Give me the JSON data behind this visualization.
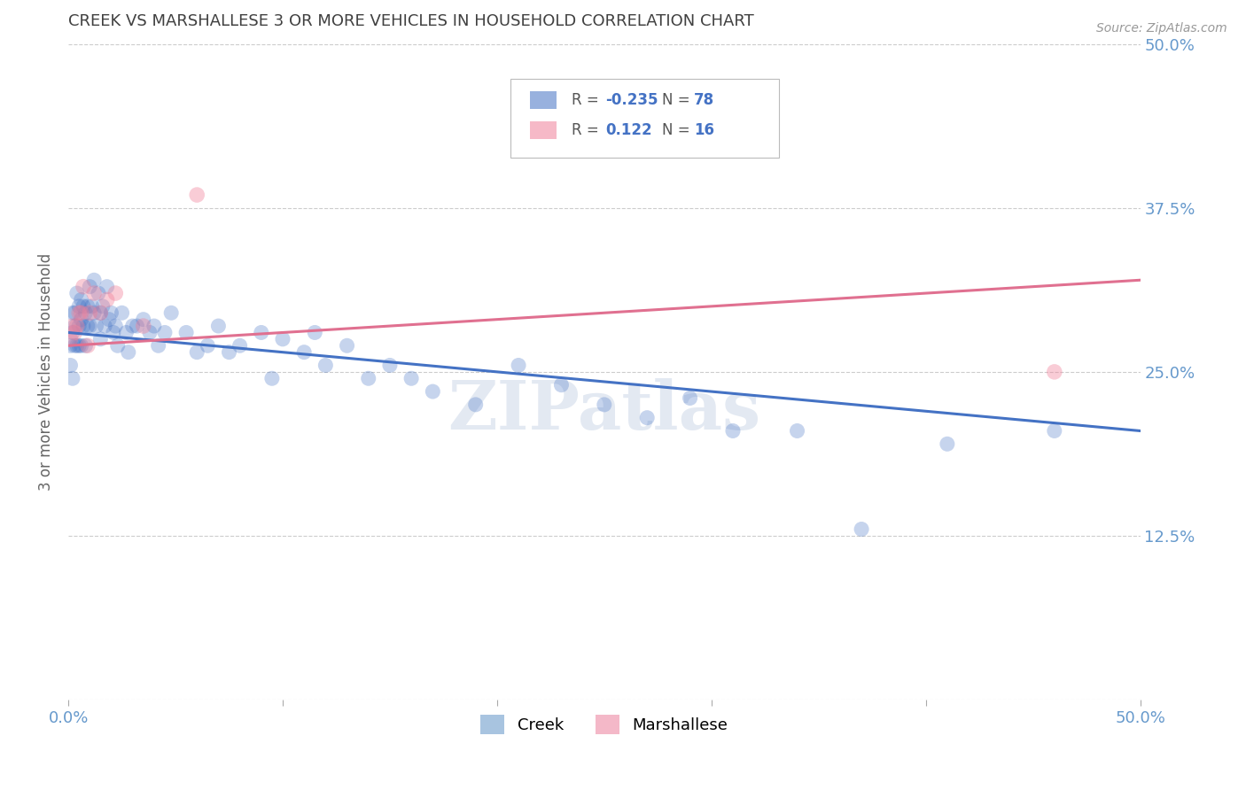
{
  "title": "CREEK VS MARSHALLESE 3 OR MORE VEHICLES IN HOUSEHOLD CORRELATION CHART",
  "source": "Source: ZipAtlas.com",
  "ylabel": "3 or more Vehicles in Household",
  "xlim": [
    0.0,
    0.5
  ],
  "ylim": [
    0.0,
    0.5
  ],
  "yticks": [
    0.0,
    0.125,
    0.25,
    0.375,
    0.5
  ],
  "ytick_labels": [
    "",
    "12.5%",
    "25.0%",
    "37.5%",
    "50.0%"
  ],
  "watermark": "ZIPatlas",
  "creek_x": [
    0.001,
    0.001,
    0.002,
    0.002,
    0.002,
    0.003,
    0.003,
    0.003,
    0.004,
    0.004,
    0.005,
    0.005,
    0.005,
    0.006,
    0.006,
    0.006,
    0.007,
    0.007,
    0.008,
    0.008,
    0.009,
    0.009,
    0.01,
    0.01,
    0.011,
    0.012,
    0.012,
    0.013,
    0.014,
    0.015,
    0.015,
    0.016,
    0.017,
    0.018,
    0.019,
    0.02,
    0.021,
    0.022,
    0.023,
    0.025,
    0.027,
    0.028,
    0.03,
    0.032,
    0.035,
    0.038,
    0.04,
    0.042,
    0.045,
    0.048,
    0.055,
    0.06,
    0.065,
    0.07,
    0.075,
    0.08,
    0.09,
    0.095,
    0.1,
    0.11,
    0.115,
    0.12,
    0.13,
    0.14,
    0.15,
    0.16,
    0.17,
    0.19,
    0.21,
    0.23,
    0.25,
    0.27,
    0.29,
    0.31,
    0.34,
    0.37,
    0.41,
    0.46
  ],
  "creek_y": [
    0.27,
    0.255,
    0.245,
    0.28,
    0.295,
    0.27,
    0.285,
    0.295,
    0.27,
    0.31,
    0.27,
    0.285,
    0.3,
    0.27,
    0.29,
    0.305,
    0.285,
    0.3,
    0.27,
    0.295,
    0.285,
    0.3,
    0.285,
    0.315,
    0.3,
    0.295,
    0.32,
    0.285,
    0.31,
    0.295,
    0.275,
    0.3,
    0.285,
    0.315,
    0.29,
    0.295,
    0.28,
    0.285,
    0.27,
    0.295,
    0.28,
    0.265,
    0.285,
    0.285,
    0.29,
    0.28,
    0.285,
    0.27,
    0.28,
    0.295,
    0.28,
    0.265,
    0.27,
    0.285,
    0.265,
    0.27,
    0.28,
    0.245,
    0.275,
    0.265,
    0.28,
    0.255,
    0.27,
    0.245,
    0.255,
    0.245,
    0.235,
    0.225,
    0.255,
    0.24,
    0.225,
    0.215,
    0.23,
    0.205,
    0.205,
    0.13,
    0.195,
    0.205
  ],
  "marshallese_x": [
    0.001,
    0.002,
    0.003,
    0.004,
    0.005,
    0.006,
    0.007,
    0.009,
    0.01,
    0.012,
    0.015,
    0.018,
    0.022,
    0.035,
    0.06,
    0.46
  ],
  "marshallese_y": [
    0.275,
    0.285,
    0.28,
    0.285,
    0.295,
    0.295,
    0.315,
    0.27,
    0.295,
    0.31,
    0.295,
    0.305,
    0.31,
    0.285,
    0.385,
    0.25
  ],
  "creek_line_color": "#4472c4",
  "marsh_line_color": "#e07090",
  "creek_dot_color": "#4472c4",
  "marsh_dot_color": "#f08099",
  "background_color": "#ffffff",
  "grid_color": "#cccccc",
  "title_color": "#404040",
  "right_label_color": "#6699cc",
  "creek_R": -0.235,
  "creek_N": 78,
  "marsh_R": 0.122,
  "marsh_N": 16,
  "creek_line_start_y": 0.28,
  "creek_line_end_y": 0.205,
  "marsh_line_start_y": 0.27,
  "marsh_line_end_y": 0.32
}
